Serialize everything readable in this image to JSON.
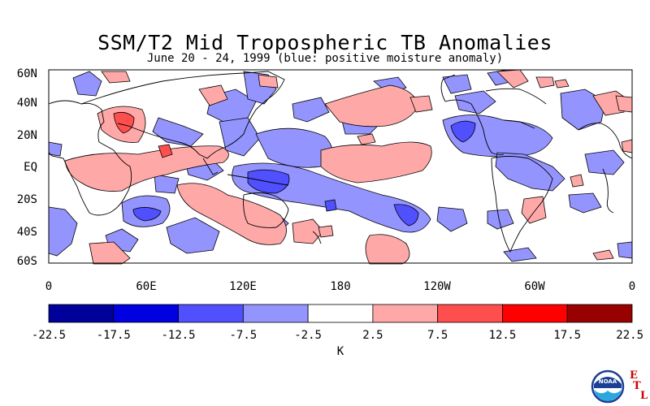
{
  "title": "SSM/T2 Mid Tropospheric TB Anomalies",
  "subtitle": "June 20 - 24, 1999 (blue: positive moisture anomaly)",
  "map": {
    "lat_labels": [
      "60N",
      "40N",
      "20N",
      "EQ",
      "20S",
      "40S",
      "60S"
    ],
    "lon_labels": [
      "0",
      "60E",
      "120E",
      "180",
      "120W",
      "60W",
      "0"
    ]
  },
  "colorbar": {
    "colors": [
      "#00009a",
      "#0000e0",
      "#5050ff",
      "#9494ff",
      "#ffffff",
      "#ffa8a8",
      "#ff4e4e",
      "#ff0000",
      "#990000"
    ],
    "labels": [
      "-22.5",
      "-17.5",
      "-12.5",
      "-7.5",
      "-2.5",
      "2.5",
      "7.5",
      "12.5",
      "17.5",
      "22.5"
    ],
    "unit": "K"
  },
  "logo": {
    "name": "noaa-logo",
    "text": "NOAA",
    "letters": [
      "E",
      "T",
      "L"
    ]
  }
}
